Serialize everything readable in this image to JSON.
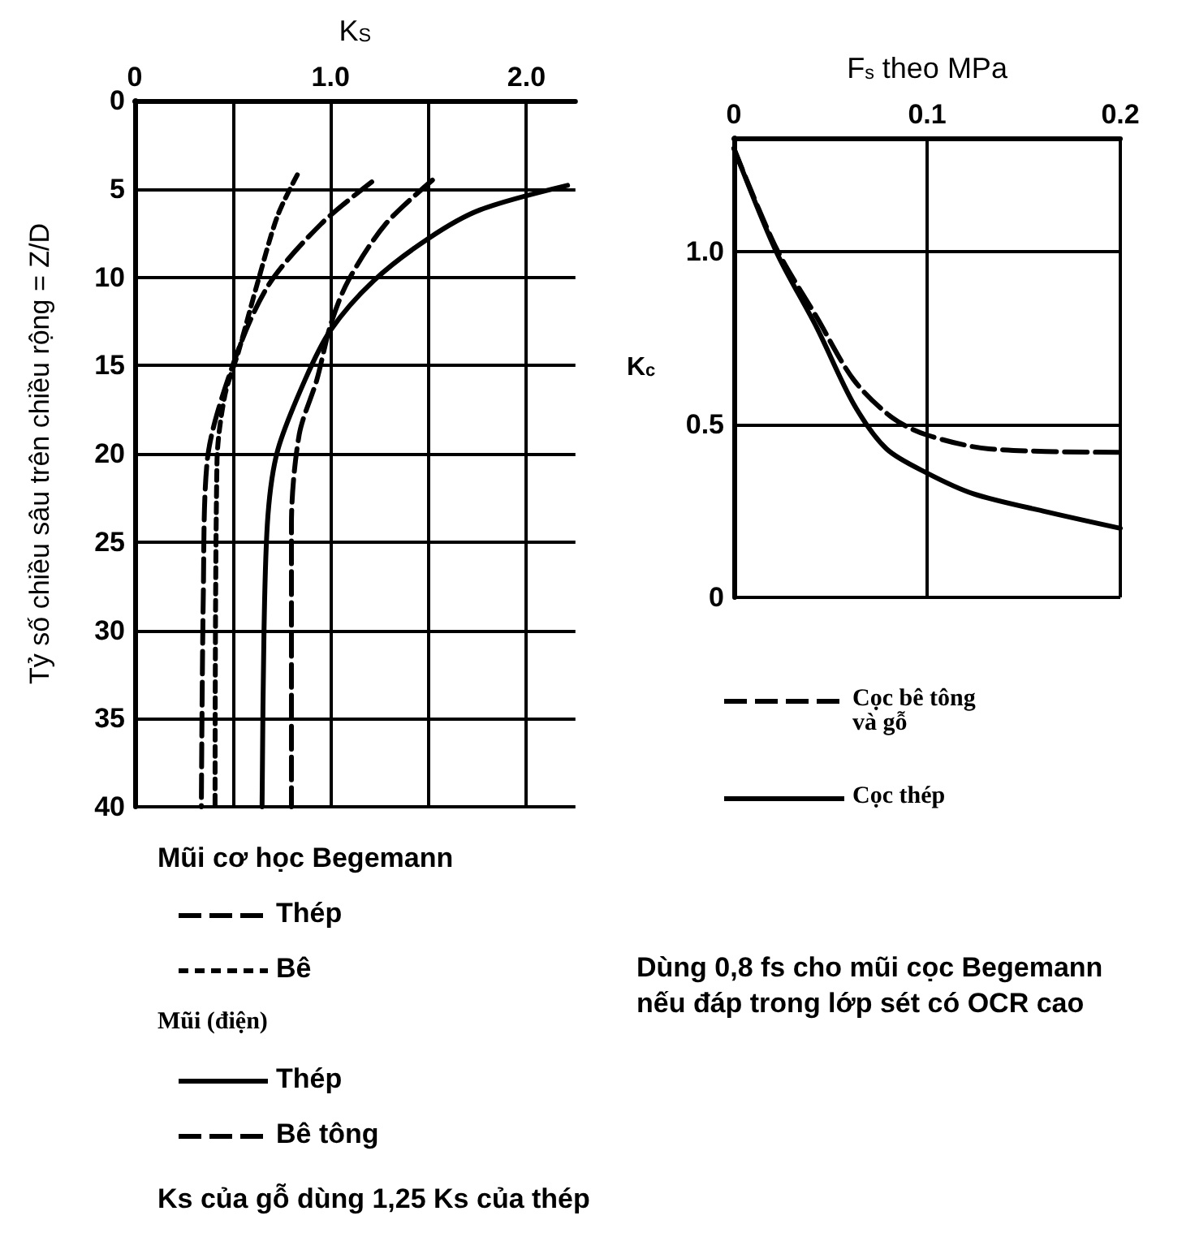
{
  "chart_data": [
    {
      "type": "line",
      "xlabel": "K$_{S}$",
      "ylabel": "Tỷ số chiều sâu trên chiều rộng = Z/D",
      "xlim": [
        0,
        2.25
      ],
      "xticks": [
        0,
        {
          "value": 0.5,
          "label": null
        },
        {
          "value": 1,
          "label": "1.0"
        },
        {
          "value": 1.5,
          "label": null
        },
        {
          "value": 2,
          "label": "2.0"
        }
      ],
      "ylim": [
        40,
        0
      ],
      "yticks": [
        0,
        5,
        10,
        15,
        20,
        25,
        30,
        35,
        40
      ],
      "grid": true,
      "legend": "bottom",
      "marker": "none",
      "annotations": [
        "Mũi cơ học Begemann",
        "Mũi (điện)",
        "Ks của gỗ dùng 1,25 Ks của thép"
      ],
      "series": [
        {
          "name": "Thép",
          "color": "#000000",
          "line_style": "dashed",
          "x": [
            1.21,
            0.95,
            0.68,
            0.5,
            0.37,
            0.35,
            0.34
          ],
          "values": [
            4.6,
            7,
            10.5,
            15,
            20.4,
            28,
            40
          ]
        },
        {
          "name": "Bê",
          "color": "#000000",
          "line_style": "dashed",
          "x": [
            0.83,
            0.73,
            0.63,
            0.53,
            0.46,
            0.42,
            0.41
          ],
          "values": [
            4.2,
            6.5,
            10.2,
            14.2,
            16.7,
            20.4,
            40
          ]
        },
        {
          "name": "Thép",
          "color": "#000000",
          "line_style": "solid",
          "x": [
            2.21,
            1.76,
            1.5,
            1.22,
            1,
            0.87,
            0.73,
            0.68,
            0.66,
            0.65
          ],
          "values": [
            4.8,
            6.2,
            7.8,
            10.2,
            13,
            15.8,
            19.8,
            23.5,
            30,
            40
          ]
        },
        {
          "name": "Bê tông",
          "color": "#000000",
          "line_style": "dashed",
          "x": [
            1.52,
            1.28,
            1.09,
            1,
            0.93,
            0.84,
            0.8,
            0.8
          ],
          "values": [
            4.5,
            7,
            10.2,
            12.7,
            15.8,
            18.9,
            24,
            40
          ]
        }
      ]
    },
    {
      "type": "line",
      "xlabel": "F$_{s}$ theo MPa",
      "ylabel": "K$_{c}$",
      "xlim": [
        0,
        0.2
      ],
      "xticks": [
        0,
        0.1,
        0.2
      ],
      "ylim": [
        0,
        1.33
      ],
      "yticks": [
        0,
        0.5,
        {
          "value": 1,
          "label": "1.0"
        }
      ],
      "grid": true,
      "legend": "bottom",
      "marker": "none",
      "annotations": [
        "Dùng 0,8 fs cho mũi cọc Begemann nếu đáp trong lớp sét có OCR cao"
      ],
      "series": [
        {
          "name": "Cọc bê tông\nvà gỗ",
          "color": "#000000",
          "line_style": "dashed",
          "x": [
            0,
            0.022,
            0.043,
            0.062,
            0.082,
            0.1,
            0.132,
            0.2
          ],
          "values": [
            1.3,
            1.01,
            0.81,
            0.63,
            0.52,
            0.47,
            0.43,
            0.42
          ]
        },
        {
          "name": "Cọc thép",
          "color": "#000000",
          "line_style": "solid",
          "x": [
            0,
            0.022,
            0.043,
            0.062,
            0.079,
            0.1,
            0.124,
            0.16,
            0.2
          ],
          "values": [
            1.3,
            1.0,
            0.78,
            0.56,
            0.43,
            0.36,
            0.3,
            0.25,
            0.2
          ]
        }
      ]
    }
  ]
}
